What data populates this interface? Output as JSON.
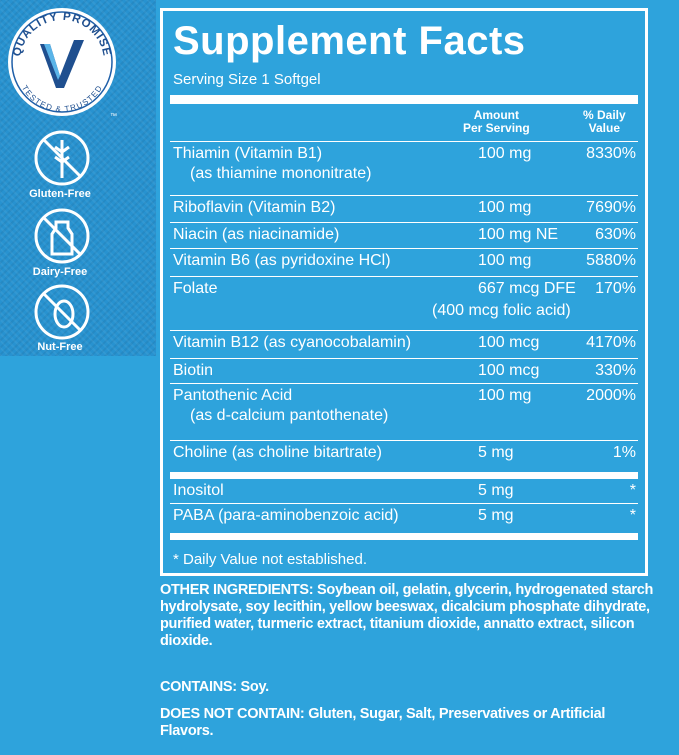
{
  "badge": {
    "top": "QUALITY PROMISE",
    "bottom": "TESTED & TRUSTED",
    "mark": "™"
  },
  "free_badges": [
    {
      "label": "Gluten-Free"
    },
    {
      "label": "Dairy-Free"
    },
    {
      "label": "Nut-Free"
    }
  ],
  "facts": {
    "title": "Supplement Facts",
    "serving": "Serving Size 1 Softgel",
    "header": {
      "amount": [
        "Amount",
        "Per Serving"
      ],
      "dv": [
        "% Daily",
        "Value"
      ]
    },
    "rows": [
      {
        "name": "Thiamin (Vitamin B1)",
        "sub": "(as thiamine mononitrate)",
        "amount": "100 mg",
        "dv": "8330%"
      },
      {
        "name": "Riboflavin (Vitamin B2)",
        "amount": "100 mg",
        "dv": "7690%"
      },
      {
        "name": "Niacin (as niacinamide)",
        "amount": "100 mg NE",
        "dv": "630%"
      },
      {
        "name": "Vitamin B6 (as pyridoxine HCl)",
        "amount": "100 mg",
        "dv": "5880%"
      },
      {
        "name": "Folate",
        "amount": "667 mcg DFE",
        "amount_sub": "(400 mcg folic acid)",
        "dv": "170%"
      },
      {
        "name": "Vitamin B12 (as cyanocobalamin)",
        "amount": "100 mcg",
        "dv": "4170%"
      },
      {
        "name": "Biotin",
        "amount": "100 mcg",
        "dv": "330%"
      },
      {
        "name": "Pantothenic Acid",
        "sub": "(as d-calcium pantothenate)",
        "amount": "100 mg",
        "dv": "2000%"
      },
      {
        "name": "Choline (as choline bitartrate)",
        "amount": "5 mg",
        "dv": "1%"
      },
      {
        "name": "Inositol",
        "amount": "5 mg",
        "dv": "*"
      },
      {
        "name": "PABA (para-aminobenzoic acid)",
        "amount": "5 mg",
        "dv": "*"
      }
    ],
    "footnote": "* Daily Value not established."
  },
  "other_ingredients": {
    "label": "OTHER INGREDIENTS:",
    "text": "Soybean oil, gelatin, glycerin, hydrogenated starch hydrolysate, soy lecithin, yellow beeswax, dicalcium phosphate dihydrate, purified water, turmeric extract, titanium dioxide, annatto extract, silicon dioxide."
  },
  "contains": {
    "label": "CONTAINS:",
    "text": "Soy."
  },
  "does_not_contain": {
    "label": "DOES NOT CONTAIN:",
    "text": "Gluten, Sugar, Salt, Preservatives or Artificial Flavors."
  }
}
